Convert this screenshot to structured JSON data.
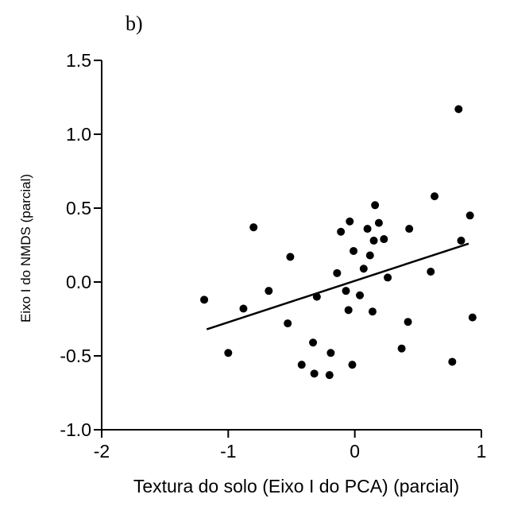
{
  "chart_data": {
    "type": "scatter",
    "panel_label": "b)",
    "xlabel": "Textura do solo (Eixo I do PCA) (parcial)",
    "ylabel": "Eixo I do NMDS (parcial)",
    "xlim": [
      -2,
      1
    ],
    "ylim": [
      -1.0,
      1.5
    ],
    "xticks": [
      -2,
      -1,
      0,
      1
    ],
    "xtick_labels": [
      "-2",
      "-1",
      "0",
      "1"
    ],
    "yticks": [
      -1.0,
      -0.5,
      0.0,
      0.5,
      1.0,
      1.5
    ],
    "ytick_labels": [
      "-1.0",
      "-0.5",
      "0.0",
      "0.5",
      "1.0",
      "1.5"
    ],
    "grid": false,
    "series": [
      {
        "points": [
          {
            "x": -1.19,
            "y": -0.12
          },
          {
            "x": -1.0,
            "y": -0.48
          },
          {
            "x": -0.88,
            "y": -0.18
          },
          {
            "x": -0.8,
            "y": 0.37
          },
          {
            "x": -0.68,
            "y": -0.06
          },
          {
            "x": -0.53,
            "y": -0.28
          },
          {
            "x": -0.51,
            "y": 0.17
          },
          {
            "x": -0.42,
            "y": -0.56
          },
          {
            "x": -0.33,
            "y": -0.41
          },
          {
            "x": -0.32,
            "y": -0.62
          },
          {
            "x": -0.3,
            "y": -0.1
          },
          {
            "x": -0.2,
            "y": -0.63
          },
          {
            "x": -0.19,
            "y": -0.48
          },
          {
            "x": -0.14,
            "y": 0.06
          },
          {
            "x": -0.11,
            "y": 0.34
          },
          {
            "x": -0.07,
            "y": -0.06
          },
          {
            "x": -0.05,
            "y": -0.19
          },
          {
            "x": -0.04,
            "y": 0.41
          },
          {
            "x": -0.02,
            "y": -0.56
          },
          {
            "x": -0.01,
            "y": 0.21
          },
          {
            "x": 0.04,
            "y": -0.09
          },
          {
            "x": 0.07,
            "y": 0.09
          },
          {
            "x": 0.1,
            "y": 0.36
          },
          {
            "x": 0.12,
            "y": 0.18
          },
          {
            "x": 0.14,
            "y": -0.2
          },
          {
            "x": 0.15,
            "y": 0.28
          },
          {
            "x": 0.16,
            "y": 0.52
          },
          {
            "x": 0.19,
            "y": 0.4
          },
          {
            "x": 0.23,
            "y": 0.29
          },
          {
            "x": 0.26,
            "y": 0.03
          },
          {
            "x": 0.37,
            "y": -0.45
          },
          {
            "x": 0.42,
            "y": -0.27
          },
          {
            "x": 0.43,
            "y": 0.36
          },
          {
            "x": 0.6,
            "y": 0.07
          },
          {
            "x": 0.63,
            "y": 0.58
          },
          {
            "x": 0.77,
            "y": -0.54
          },
          {
            "x": 0.82,
            "y": 1.17
          },
          {
            "x": 0.84,
            "y": 0.28
          },
          {
            "x": 0.91,
            "y": 0.45
          },
          {
            "x": 0.93,
            "y": -0.24
          }
        ]
      }
    ],
    "fit_line": {
      "x": [
        -1.17,
        0.9
      ],
      "y": [
        -0.32,
        0.26
      ]
    }
  }
}
